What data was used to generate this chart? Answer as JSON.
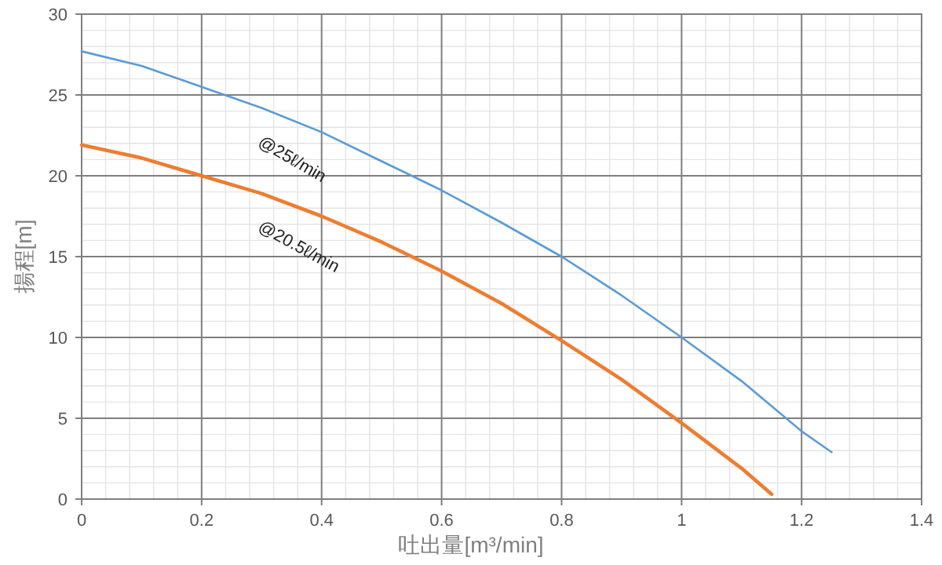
{
  "chart_data": {
    "type": "line",
    "xlabel": "吐出量[m³/min]",
    "ylabel": "揚程[m]",
    "xlim": [
      0,
      1.4
    ],
    "xticks": [
      0,
      0.2,
      0.4,
      0.6,
      0.8,
      1,
      1.2,
      1.4
    ],
    "ylim": [
      0,
      30
    ],
    "yticks": [
      0,
      5,
      10,
      15,
      20,
      25,
      30
    ],
    "grid": true,
    "marker": "none",
    "line_style": "solid",
    "series": [
      {
        "name": "@25ℓ/min",
        "color": "#5b9bd5",
        "x": [
          0,
          0.1,
          0.2,
          0.3,
          0.4,
          0.5,
          0.6,
          0.7,
          0.8,
          0.9,
          1.0,
          1.1,
          1.2,
          1.25
        ],
        "values": [
          27.7,
          26.8,
          25.5,
          24.2,
          22.7,
          20.9,
          19.1,
          17.1,
          15.0,
          12.6,
          10.0,
          7.3,
          4.2,
          2.9
        ]
      },
      {
        "name": "@20.5ℓ/min",
        "color": "#ed7d31",
        "x": [
          0,
          0.1,
          0.2,
          0.3,
          0.4,
          0.5,
          0.6,
          0.7,
          0.8,
          0.9,
          1.0,
          1.1,
          1.15
        ],
        "values": [
          21.9,
          21.1,
          20.0,
          18.9,
          17.5,
          15.9,
          14.1,
          12.1,
          9.8,
          7.4,
          4.7,
          1.9,
          0.3
        ]
      }
    ]
  }
}
